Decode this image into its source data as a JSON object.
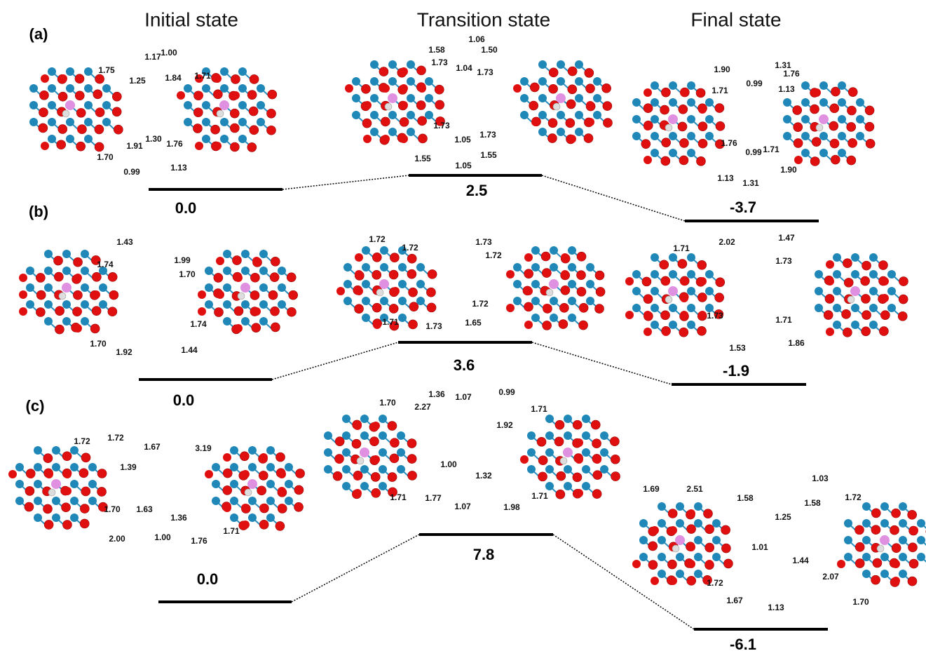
{
  "headers": [
    "Initial state",
    "Transition state",
    "Final state"
  ],
  "panels": [
    {
      "label": "(a)",
      "states": [
        {
          "energy": "0.0",
          "distances": [
            "1.17",
            "1.00",
            "1.75",
            "1.84",
            "1.71",
            "1.25",
            "1.91",
            "1.30",
            "1.76",
            "1.70",
            "1.13",
            "0.99"
          ]
        },
        {
          "energy": "2.5",
          "distances": [
            "1.06",
            "1.58",
            "1.50",
            "1.73",
            "1.04",
            "1.73",
            "1.73",
            "1.05",
            "1.73",
            "1.55",
            "1.55",
            "1.05"
          ]
        },
        {
          "energy": "-3.7",
          "distances": [
            "1.31",
            "1.90",
            "1.76",
            "0.99",
            "1.71",
            "1.13",
            "1.76",
            "0.99",
            "1.71",
            "1.13",
            "1.31",
            "1.90"
          ]
        }
      ]
    },
    {
      "label": "(b)",
      "states": [
        {
          "energy": "0.0",
          "distances": [
            "1.43",
            "1.74",
            "1.99",
            "1.70",
            "1.74",
            "1.70",
            "1.92",
            "1.44"
          ]
        },
        {
          "energy": "3.6",
          "distances": [
            "1.72",
            "1.72",
            "1.73",
            "1.72",
            "1.72",
            "1.71",
            "1.73",
            "1.65"
          ]
        },
        {
          "energy": "-1.9",
          "distances": [
            "1.71",
            "2.02",
            "1.47",
            "1.73",
            "1.73",
            "1.71",
            "1.53",
            "1.86"
          ]
        }
      ]
    },
    {
      "label": "(c)",
      "states": [
        {
          "energy": "0.0",
          "distances": [
            "1.72",
            "1.72",
            "1.67",
            "3.19",
            "1.39",
            "1.70",
            "1.63",
            "1.36",
            "2.00",
            "1.00",
            "1.76",
            "1.71"
          ]
        },
        {
          "energy": "7.8",
          "distances": [
            "0.99",
            "1.36",
            "1.07",
            "1.70",
            "2.27",
            "1.71",
            "1.92",
            "1.00",
            "1.32",
            "1.71",
            "1.77",
            "1.07",
            "1.98",
            "1.71"
          ]
        },
        {
          "energy": "-6.1",
          "distances": [
            "1.03",
            "1.69",
            "2.51",
            "1.58",
            "1.58",
            "1.72",
            "1.25",
            "1.01",
            "1.44",
            "2.07",
            "1.72",
            "1.67",
            "1.13",
            "1.70"
          ]
        }
      ]
    }
  ]
}
